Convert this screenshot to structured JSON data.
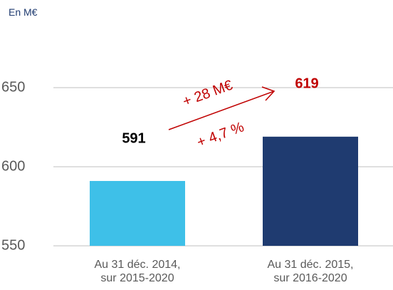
{
  "chart_data": {
    "type": "bar",
    "subtitle": "En M€",
    "categories": [
      "Au 31 déc. 2014,\nsur 2015-2020",
      "Au 31 déc. 2015,\nsur 2016-2020"
    ],
    "values": [
      591,
      619
    ],
    "colors": [
      "#3ec0e8",
      "#1f3b70"
    ],
    "value_label_colors": [
      "#000000",
      "#c00000"
    ],
    "ylim": [
      550,
      650
    ],
    "yticks": [
      550,
      600,
      650
    ],
    "grid": true,
    "annotations": [
      "+ 28 M€",
      "+ 4,7 %"
    ],
    "annotation_color": "#c00000"
  }
}
